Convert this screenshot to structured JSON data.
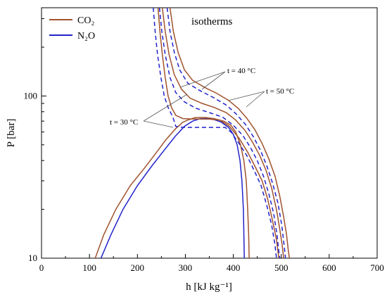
{
  "chart_data": {
    "type": "line",
    "title": "isotherms",
    "xlabel": "h [kJ kg⁻¹]",
    "ylabel": "P [bar]",
    "xlim": [
      0,
      700
    ],
    "ylim": [
      10,
      350
    ],
    "yscale": "log",
    "x_ticks": [
      "0",
      "100",
      "200",
      "300",
      "400",
      "500",
      "600",
      "700"
    ],
    "y_ticks": [
      "10",
      "100"
    ],
    "legend_position": "top-left",
    "legend": [
      {
        "label": "CO₂",
        "color": "#a0522d"
      },
      {
        "label": "N₂O",
        "color": "#2222cc"
      }
    ],
    "annotations": [
      {
        "text": "t = 30 °C"
      },
      {
        "text": "t = 40 °C"
      },
      {
        "text": "t = 50 °C"
      }
    ],
    "series": [
      {
        "substance": "CO₂",
        "kind": "saturation dome",
        "style": "solid",
        "color": "#a0522d",
        "points": [
          [
            112,
            10
          ],
          [
            130,
            14
          ],
          [
            155,
            20
          ],
          [
            185,
            28
          ],
          [
            215,
            36
          ],
          [
            240,
            45
          ],
          [
            260,
            54
          ],
          [
            280,
            63
          ],
          [
            295,
            69
          ],
          [
            305,
            71
          ],
          [
            320,
            73.5
          ],
          [
            340,
            73.8
          ],
          [
            360,
            72.5
          ],
          [
            380,
            70
          ],
          [
            395,
            66
          ],
          [
            405,
            60
          ],
          [
            415,
            50
          ],
          [
            422,
            40
          ],
          [
            427,
            30
          ],
          [
            430,
            20
          ],
          [
            432,
            14
          ],
          [
            433,
            10
          ]
        ]
      },
      {
        "substance": "N₂O",
        "kind": "saturation dome",
        "style": "solid",
        "color": "#2222cc",
        "points": [
          [
            124,
            10
          ],
          [
            145,
            14
          ],
          [
            170,
            20
          ],
          [
            200,
            28
          ],
          [
            230,
            37
          ],
          [
            255,
            46
          ],
          [
            278,
            56
          ],
          [
            298,
            65
          ],
          [
            315,
            70
          ],
          [
            330,
            72.3
          ],
          [
            345,
            72.5
          ],
          [
            360,
            71.5
          ],
          [
            375,
            69
          ],
          [
            390,
            64
          ],
          [
            400,
            58
          ],
          [
            408,
            50
          ],
          [
            414,
            40
          ],
          [
            418,
            30
          ],
          [
            421,
            20
          ],
          [
            422,
            14
          ],
          [
            423,
            10
          ]
        ]
      },
      {
        "substance": "CO₂",
        "kind": "isotherm",
        "temperature": "30 °C",
        "style": "solid",
        "color": "#a0522d",
        "points": [
          [
            243,
            350
          ],
          [
            247,
            250
          ],
          [
            252,
            180
          ],
          [
            258,
            130
          ],
          [
            264,
            100
          ],
          [
            271,
            85
          ],
          [
            280,
            76
          ],
          [
            295,
            72.5
          ],
          [
            320,
            72
          ],
          [
            350,
            72
          ],
          [
            372,
            71
          ],
          [
            392,
            65
          ],
          [
            412,
            55
          ],
          [
            430,
            45
          ],
          [
            445,
            37
          ],
          [
            460,
            30
          ],
          [
            472,
            23
          ],
          [
            482,
            17
          ],
          [
            490,
            13
          ],
          [
            495,
            10
          ]
        ]
      },
      {
        "substance": "CO₂",
        "kind": "isotherm",
        "temperature": "40 °C",
        "style": "solid",
        "color": "#a0522d",
        "points": [
          [
            252,
            350
          ],
          [
            258,
            250
          ],
          [
            266,
            180
          ],
          [
            277,
            135
          ],
          [
            292,
            110
          ],
          [
            310,
            97
          ],
          [
            335,
            90
          ],
          [
            360,
            85
          ],
          [
            385,
            79
          ],
          [
            405,
            71
          ],
          [
            425,
            61
          ],
          [
            440,
            52
          ],
          [
            455,
            43
          ],
          [
            468,
            35
          ],
          [
            480,
            27
          ],
          [
            490,
            20
          ],
          [
            497,
            15
          ],
          [
            502,
            12
          ],
          [
            505,
            10
          ]
        ]
      },
      {
        "substance": "CO₂",
        "kind": "isotherm",
        "temperature": "50 °C",
        "style": "solid",
        "color": "#a0522d",
        "points": [
          [
            268,
            350
          ],
          [
            275,
            250
          ],
          [
            285,
            185
          ],
          [
            298,
            145
          ],
          [
            315,
            125
          ],
          [
            340,
            113
          ],
          [
            365,
            104
          ],
          [
            390,
            94
          ],
          [
            410,
            84
          ],
          [
            428,
            73
          ],
          [
            445,
            62
          ],
          [
            460,
            51
          ],
          [
            474,
            41
          ],
          [
            487,
            32
          ],
          [
            497,
            24
          ],
          [
            505,
            18
          ],
          [
            511,
            14
          ],
          [
            515,
            11
          ],
          [
            517,
            10
          ]
        ]
      },
      {
        "substance": "N₂O",
        "kind": "isotherm",
        "temperature": "30 °C",
        "style": "dashed",
        "color": "#2222cc",
        "points": [
          [
            233,
            350
          ],
          [
            237,
            250
          ],
          [
            242,
            180
          ],
          [
            249,
            130
          ],
          [
            256,
            100
          ],
          [
            264,
            85
          ],
          [
            274,
            74
          ],
          [
            280,
            65
          ],
          [
            295,
            64
          ],
          [
            330,
            64
          ],
          [
            360,
            64
          ],
          [
            383,
            64
          ],
          [
            395,
            60
          ],
          [
            410,
            52
          ],
          [
            428,
            43
          ],
          [
            443,
            35
          ],
          [
            458,
            28
          ],
          [
            470,
            21
          ],
          [
            480,
            16
          ],
          [
            487,
            12
          ],
          [
            490,
            10
          ]
        ]
      },
      {
        "substance": "N₂O",
        "kind": "isotherm",
        "temperature": "40 °C",
        "style": "dashed",
        "color": "#2222cc",
        "points": [
          [
            246,
            350
          ],
          [
            251,
            250
          ],
          [
            258,
            180
          ],
          [
            268,
            130
          ],
          [
            280,
            105
          ],
          [
            298,
            92
          ],
          [
            322,
            84
          ],
          [
            350,
            79
          ],
          [
            378,
            74
          ],
          [
            400,
            66
          ],
          [
            420,
            57
          ],
          [
            436,
            48
          ],
          [
            450,
            40
          ],
          [
            463,
            32
          ],
          [
            474,
            25
          ],
          [
            484,
            19
          ],
          [
            491,
            14
          ],
          [
            495,
            11
          ],
          [
            497,
            10
          ]
        ]
      },
      {
        "substance": "N₂O",
        "kind": "isotherm",
        "temperature": "50 °C",
        "style": "dashed",
        "color": "#2222cc",
        "points": [
          [
            262,
            350
          ],
          [
            268,
            250
          ],
          [
            277,
            185
          ],
          [
            288,
            145
          ],
          [
            305,
            120
          ],
          [
            330,
            108
          ],
          [
            358,
            98
          ],
          [
            385,
            88
          ],
          [
            405,
            78
          ],
          [
            425,
            67
          ],
          [
            442,
            56
          ],
          [
            457,
            46
          ],
          [
            470,
            37
          ],
          [
            482,
            29
          ],
          [
            493,
            22
          ],
          [
            501,
            16
          ],
          [
            506,
            12
          ],
          [
            509,
            10
          ]
        ]
      }
    ]
  }
}
